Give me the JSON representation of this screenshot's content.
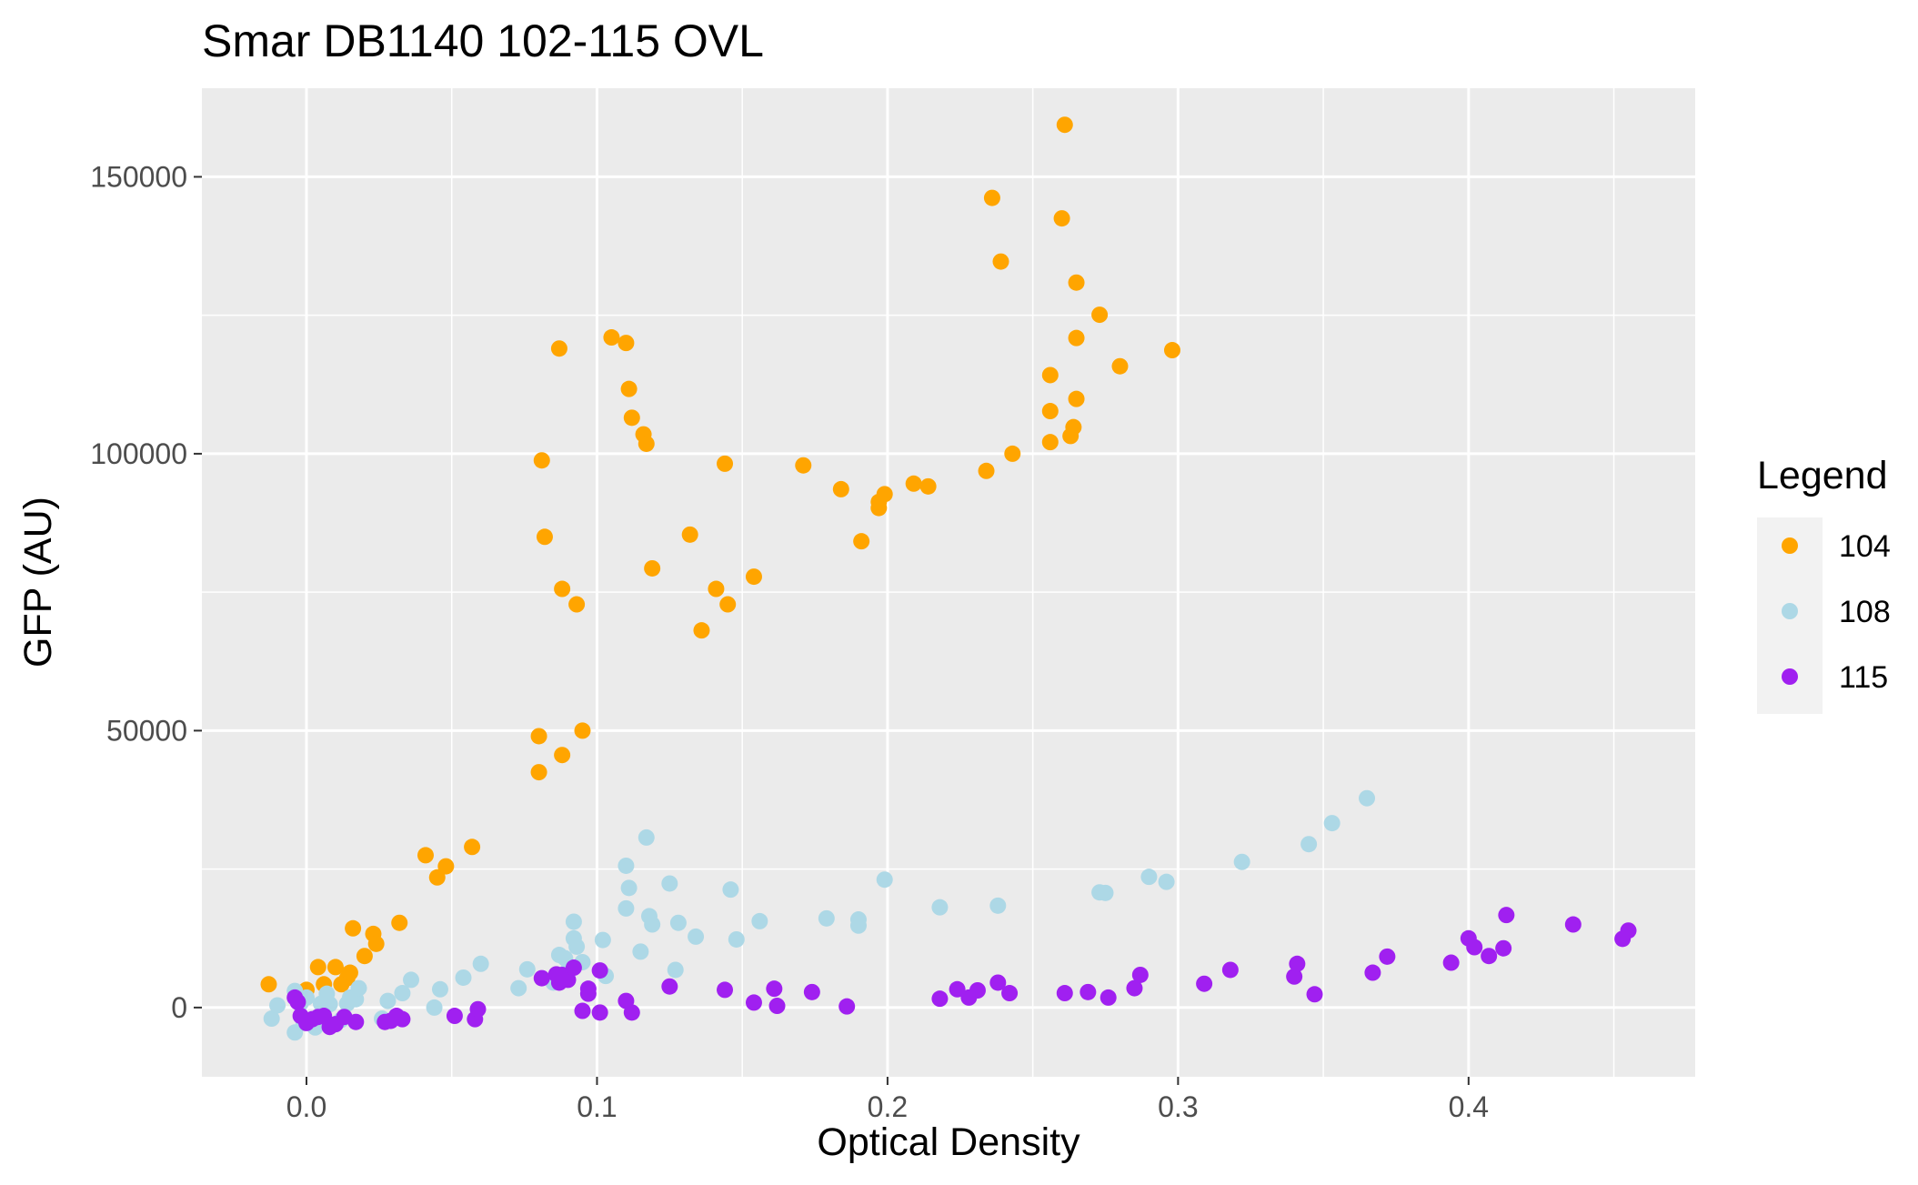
{
  "chart_data": {
    "type": "scatter",
    "title": "Smar DB1140 102-115 OVL",
    "xlabel": "Optical Density",
    "ylabel": "GFP (AU)",
    "xlim": [
      -0.036,
      0.478
    ],
    "ylim": [
      -12500,
      166000
    ],
    "x_ticks": [
      0.0,
      0.1,
      0.2,
      0.3,
      0.4
    ],
    "x_tick_labels": [
      "0.0",
      "0.1",
      "0.2",
      "0.3",
      "0.4"
    ],
    "y_ticks": [
      0,
      50000,
      100000,
      150000
    ],
    "y_tick_labels": [
      "0",
      "50000",
      "100000",
      "150000"
    ],
    "grid": true,
    "panel_background": "#ebebeb",
    "legend": {
      "title": "Legend",
      "placement": "right"
    },
    "series": [
      {
        "name": "104",
        "color": "#ffa500",
        "points": [
          [
            -0.013,
            4200
          ],
          [
            0.0,
            3200
          ],
          [
            0.004,
            7300
          ],
          [
            0.006,
            4200
          ],
          [
            0.01,
            7300
          ],
          [
            0.012,
            4200
          ],
          [
            0.014,
            5300
          ],
          [
            0.016,
            14300
          ],
          [
            0.015,
            6300
          ],
          [
            0.02,
            9300
          ],
          [
            0.023,
            13300
          ],
          [
            0.024,
            11500
          ],
          [
            0.032,
            15300
          ],
          [
            0.041,
            27500
          ],
          [
            0.045,
            23500
          ],
          [
            0.048,
            25500
          ],
          [
            0.057,
            29000
          ],
          [
            0.08,
            49000
          ],
          [
            0.08,
            42500
          ],
          [
            0.081,
            98800
          ],
          [
            0.082,
            85000
          ],
          [
            0.087,
            119000
          ],
          [
            0.088,
            75600
          ],
          [
            0.088,
            45600
          ],
          [
            0.093,
            72800
          ],
          [
            0.095,
            50000
          ],
          [
            0.105,
            121000
          ],
          [
            0.11,
            120000
          ],
          [
            0.111,
            111700
          ],
          [
            0.112,
            106500
          ],
          [
            0.116,
            103500
          ],
          [
            0.117,
            101800
          ],
          [
            0.119,
            79300
          ],
          [
            0.132,
            85400
          ],
          [
            0.136,
            68100
          ],
          [
            0.141,
            75600
          ],
          [
            0.144,
            98200
          ],
          [
            0.145,
            72800
          ],
          [
            0.154,
            77800
          ],
          [
            0.171,
            97900
          ],
          [
            0.184,
            93600
          ],
          [
            0.191,
            84200
          ],
          [
            0.197,
            90200
          ],
          [
            0.197,
            91300
          ],
          [
            0.199,
            92700
          ],
          [
            0.209,
            94600
          ],
          [
            0.214,
            94100
          ],
          [
            0.234,
            96900
          ],
          [
            0.236,
            146200
          ],
          [
            0.239,
            134700
          ],
          [
            0.243,
            100000
          ],
          [
            0.256,
            114200
          ],
          [
            0.256,
            107700
          ],
          [
            0.256,
            102100
          ],
          [
            0.26,
            142500
          ],
          [
            0.261,
            159400
          ],
          [
            0.263,
            103200
          ],
          [
            0.264,
            104800
          ],
          [
            0.265,
            130900
          ],
          [
            0.265,
            120900
          ],
          [
            0.265,
            109900
          ],
          [
            0.273,
            125100
          ],
          [
            0.28,
            115800
          ],
          [
            0.298,
            118700
          ]
        ]
      },
      {
        "name": "108",
        "color": "#add8e6",
        "points": [
          [
            -0.012,
            -2000
          ],
          [
            -0.01,
            400
          ],
          [
            -0.004,
            -4500
          ],
          [
            -0.004,
            3000
          ],
          [
            -0.002,
            800
          ],
          [
            -0.001,
            -2800
          ],
          [
            0.0,
            1800
          ],
          [
            0.002,
            -2200
          ],
          [
            0.003,
            -3600
          ],
          [
            0.005,
            700
          ],
          [
            0.007,
            2500
          ],
          [
            0.008,
            600
          ],
          [
            0.01,
            -3000
          ],
          [
            0.012,
            -2200
          ],
          [
            0.014,
            700
          ],
          [
            0.015,
            1800
          ],
          [
            0.017,
            1500
          ],
          [
            0.018,
            3500
          ],
          [
            0.026,
            -2000
          ],
          [
            0.028,
            1200
          ],
          [
            0.031,
            -1800
          ],
          [
            0.033,
            2600
          ],
          [
            0.036,
            5000
          ],
          [
            0.044,
            0
          ],
          [
            0.046,
            3300
          ],
          [
            0.054,
            5400
          ],
          [
            0.06,
            7900
          ],
          [
            0.073,
            3500
          ],
          [
            0.076,
            6900
          ],
          [
            0.085,
            4500
          ],
          [
            0.087,
            9500
          ],
          [
            0.089,
            8900
          ],
          [
            0.09,
            6700
          ],
          [
            0.092,
            15500
          ],
          [
            0.092,
            12500
          ],
          [
            0.093,
            11000
          ],
          [
            0.095,
            8200
          ],
          [
            0.102,
            12200
          ],
          [
            0.103,
            5700
          ],
          [
            0.11,
            25600
          ],
          [
            0.11,
            17900
          ],
          [
            0.111,
            21600
          ],
          [
            0.115,
            10100
          ],
          [
            0.117,
            30700
          ],
          [
            0.118,
            16500
          ],
          [
            0.119,
            15000
          ],
          [
            0.125,
            22400
          ],
          [
            0.127,
            6800
          ],
          [
            0.128,
            15300
          ],
          [
            0.134,
            12800
          ],
          [
            0.146,
            21300
          ],
          [
            0.148,
            12300
          ],
          [
            0.156,
            15600
          ],
          [
            0.179,
            16100
          ],
          [
            0.19,
            15900
          ],
          [
            0.19,
            14800
          ],
          [
            0.199,
            23100
          ],
          [
            0.218,
            18100
          ],
          [
            0.238,
            18400
          ],
          [
            0.273,
            20800
          ],
          [
            0.275,
            20700
          ],
          [
            0.29,
            23600
          ],
          [
            0.296,
            22700
          ],
          [
            0.322,
            26300
          ],
          [
            0.345,
            29500
          ],
          [
            0.353,
            33300
          ],
          [
            0.365,
            37800
          ]
        ]
      },
      {
        "name": "115",
        "color": "#a020f0",
        "points": [
          [
            -0.004,
            1800
          ],
          [
            -0.003,
            1000
          ],
          [
            -0.002,
            -1500
          ],
          [
            0.0,
            -2800
          ],
          [
            0.002,
            -2100
          ],
          [
            0.004,
            -1700
          ],
          [
            0.006,
            -1500
          ],
          [
            0.008,
            -3500
          ],
          [
            0.01,
            -3000
          ],
          [
            0.013,
            -1700
          ],
          [
            0.017,
            -2600
          ],
          [
            0.027,
            -2600
          ],
          [
            0.029,
            -2400
          ],
          [
            0.031,
            -1500
          ],
          [
            0.033,
            -2100
          ],
          [
            0.051,
            -1500
          ],
          [
            0.058,
            -2100
          ],
          [
            0.059,
            -300
          ],
          [
            0.081,
            5300
          ],
          [
            0.086,
            6000
          ],
          [
            0.087,
            4500
          ],
          [
            0.088,
            5900
          ],
          [
            0.09,
            5000
          ],
          [
            0.092,
            7200
          ],
          [
            0.095,
            -600
          ],
          [
            0.097,
            3400
          ],
          [
            0.097,
            2500
          ],
          [
            0.101,
            6700
          ],
          [
            0.101,
            -900
          ],
          [
            0.11,
            1200
          ],
          [
            0.112,
            -900
          ],
          [
            0.125,
            3800
          ],
          [
            0.144,
            3200
          ],
          [
            0.154,
            900
          ],
          [
            0.161,
            3400
          ],
          [
            0.162,
            300
          ],
          [
            0.174,
            2800
          ],
          [
            0.186,
            200
          ],
          [
            0.218,
            1600
          ],
          [
            0.224,
            3300
          ],
          [
            0.228,
            1800
          ],
          [
            0.231,
            3100
          ],
          [
            0.238,
            4500
          ],
          [
            0.242,
            2600
          ],
          [
            0.261,
            2600
          ],
          [
            0.269,
            2800
          ],
          [
            0.276,
            1800
          ],
          [
            0.285,
            3500
          ],
          [
            0.287,
            5900
          ],
          [
            0.309,
            4300
          ],
          [
            0.318,
            6800
          ],
          [
            0.34,
            5600
          ],
          [
            0.341,
            7900
          ],
          [
            0.347,
            2400
          ],
          [
            0.367,
            6300
          ],
          [
            0.372,
            9200
          ],
          [
            0.394,
            8100
          ],
          [
            0.4,
            12500
          ],
          [
            0.402,
            10900
          ],
          [
            0.407,
            9300
          ],
          [
            0.412,
            10700
          ],
          [
            0.413,
            16700
          ],
          [
            0.436,
            15000
          ],
          [
            0.453,
            12400
          ],
          [
            0.455,
            13900
          ]
        ]
      }
    ]
  }
}
